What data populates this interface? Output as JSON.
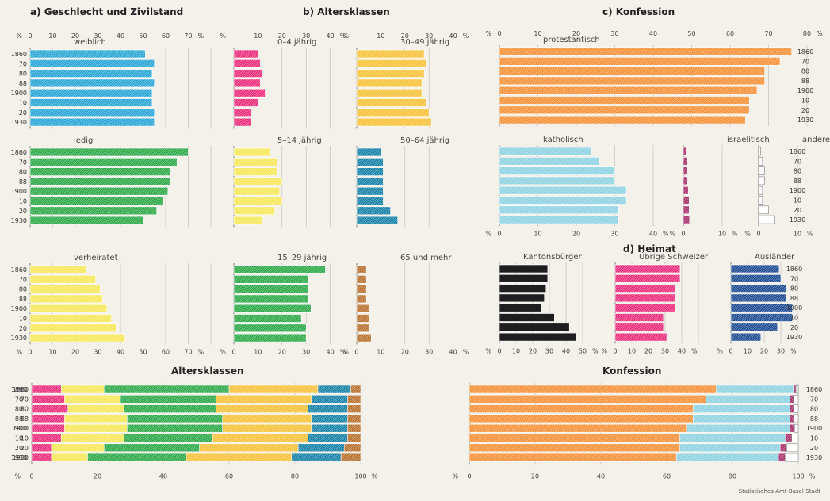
{
  "section_titles": {
    "a": "a) Geschlecht und Zivilstand",
    "b": "b) Altersklassen",
    "c": "c) Konfession",
    "d": "d) Heimat",
    "bottom_left": "Altersklassen",
    "bottom_right": "Konfession"
  },
  "footer": "Statistisches Amt Basel-Stadt",
  "colors": {
    "blue": "#2aa7d6",
    "green": "#2faa4a",
    "yellow": "#f6e85a",
    "pink": "#ec2f7d",
    "amber": "#f8c33a",
    "teal": "#1883a8",
    "brown": "#b8712e",
    "orange": "#f7923a",
    "cyan": "#8fd3e2",
    "purple": "#a8326c",
    "white": "#ffffff",
    "black": "#1e1e1e",
    "navy": "#1f4e94"
  },
  "chart_data": [
    {
      "type": "bar",
      "orientation": "horizontal",
      "title": "weiblich",
      "categories": [
        "1860",
        "70",
        "80",
        "88",
        "1900",
        "10",
        "20",
        "1930"
      ],
      "values": [
        51,
        55,
        54,
        55,
        54,
        54,
        55,
        55
      ],
      "xlim": [
        0,
        80
      ],
      "ticks": [
        0,
        10,
        20,
        30,
        40,
        50,
        60,
        70
      ],
      "unit": "%",
      "color": "blue"
    },
    {
      "type": "bar",
      "orientation": "horizontal",
      "title": "ledig",
      "categories": [
        "1860",
        "70",
        "80",
        "88",
        "1900",
        "10",
        "20",
        "1930"
      ],
      "values": [
        70,
        65,
        62,
        62,
        61,
        59,
        56,
        50
      ],
      "xlim": [
        0,
        80
      ],
      "ticks": [],
      "color": "green"
    },
    {
      "type": "bar",
      "orientation": "horizontal",
      "title": "verheiratet",
      "categories": [
        "1860",
        "70",
        "80",
        "88",
        "1900",
        "10",
        "20",
        "1930"
      ],
      "values": [
        25,
        29,
        31,
        32,
        34,
        36,
        38,
        42
      ],
      "xlim": [
        0,
        80
      ],
      "ticks": [
        0,
        10,
        20,
        30,
        40,
        50,
        60,
        70
      ],
      "unit": "%",
      "color": "yellow"
    },
    {
      "type": "bar",
      "orientation": "horizontal",
      "title": "0–4 jährig",
      "categories": [
        "1860",
        "70",
        "80",
        "88",
        "1900",
        "10",
        "20",
        "1930"
      ],
      "values": [
        10,
        11,
        12,
        11,
        13,
        10,
        7,
        7
      ],
      "xlim": [
        0,
        45
      ],
      "ticks": [
        10,
        20,
        30,
        40
      ],
      "unit": "%",
      "color": "pink"
    },
    {
      "type": "bar",
      "orientation": "horizontal",
      "title": "5–14 jährig",
      "categories": [
        "1860",
        "70",
        "80",
        "88",
        "1900",
        "10",
        "20",
        "1930"
      ],
      "values": [
        15,
        18,
        18,
        20,
        19,
        20,
        17,
        12
      ],
      "xlim": [
        0,
        45
      ],
      "ticks": [],
      "color": "yellow"
    },
    {
      "type": "bar",
      "orientation": "horizontal",
      "title": "15–29 jährig",
      "categories": [
        "1860",
        "70",
        "80",
        "88",
        "1900",
        "10",
        "20",
        "1930"
      ],
      "values": [
        38,
        31,
        31,
        31,
        32,
        28,
        30,
        30
      ],
      "xlim": [
        0,
        45
      ],
      "ticks": [
        0,
        10,
        20,
        30,
        40
      ],
      "unit": "%",
      "color": "green"
    },
    {
      "type": "bar",
      "orientation": "horizontal",
      "title": "30–49 jährig",
      "categories": [
        "1860",
        "70",
        "80",
        "88",
        "1900",
        "10",
        "20",
        "1930"
      ],
      "values": [
        28,
        29,
        28,
        27,
        27,
        29,
        30,
        31
      ],
      "xlim": [
        0,
        45
      ],
      "ticks": [
        10,
        20,
        30,
        40
      ],
      "unit": "%",
      "color": "amber"
    },
    {
      "type": "bar",
      "orientation": "horizontal",
      "title": "50–64 jährig",
      "categories": [
        "1860",
        "70",
        "80",
        "88",
        "1900",
        "10",
        "20",
        "1930"
      ],
      "values": [
        10,
        11,
        11,
        11,
        11,
        11,
        14,
        17
      ],
      "xlim": [
        0,
        45
      ],
      "ticks": [],
      "color": "teal"
    },
    {
      "type": "bar",
      "orientation": "horizontal",
      "title": "65 und mehr",
      "categories": [
        "1860",
        "70",
        "80",
        "88",
        "1900",
        "10",
        "20",
        "1930"
      ],
      "values": [
        4,
        4,
        4,
        4,
        5,
        5,
        5,
        6
      ],
      "xlim": [
        0,
        45
      ],
      "ticks": [
        0,
        10,
        20,
        30,
        40
      ],
      "unit": "%",
      "color": "brown"
    },
    {
      "type": "bar",
      "orientation": "horizontal",
      "title": "protestantisch",
      "categories": [
        "1860",
        "70",
        "80",
        "88",
        "1900",
        "10",
        "20",
        "1930"
      ],
      "values": [
        76,
        73,
        69,
        69,
        67,
        65,
        65,
        64
      ],
      "xlim": [
        0,
        80
      ],
      "ticks": [
        0,
        10,
        20,
        30,
        40,
        50,
        60,
        70,
        80
      ],
      "unit": "%",
      "color": "orange"
    },
    {
      "type": "bar",
      "orientation": "horizontal",
      "title": "katholisch",
      "categories": [
        "1860",
        "70",
        "80",
        "88",
        "1900",
        "10",
        "20",
        "1930"
      ],
      "values": [
        24,
        26,
        30,
        30,
        33,
        33,
        31,
        31
      ],
      "xlim": [
        0,
        40
      ],
      "ticks": [
        0,
        10,
        20,
        30,
        40
      ],
      "unit": "%",
      "color": "cyan"
    },
    {
      "type": "bar",
      "orientation": "horizontal",
      "title": "israelitisch",
      "categories": [
        "1860",
        "70",
        "80",
        "88",
        "1900",
        "10",
        "20",
        "1930"
      ],
      "values": [
        0.7,
        0.9,
        1.1,
        1.1,
        1.3,
        1.5,
        1.5,
        1.6
      ],
      "xlim": [
        0,
        10
      ],
      "ticks": [
        0,
        10
      ],
      "unit": "%",
      "color": "purple"
    },
    {
      "type": "bar",
      "orientation": "horizontal",
      "title": "andere",
      "categories": [
        "1860",
        "70",
        "80",
        "88",
        "1900",
        "10",
        "20",
        "1930"
      ],
      "values": [
        0.5,
        1,
        1.5,
        1.5,
        1,
        1,
        2.5,
        4
      ],
      "xlim": [
        0,
        10
      ],
      "ticks": [
        0,
        10
      ],
      "unit": "%",
      "color": "white"
    },
    {
      "type": "bar",
      "orientation": "horizontal",
      "title": "Kantonsbürger",
      "categories": [
        "1860",
        "70",
        "80",
        "88",
        "1900",
        "10",
        "20",
        "1930"
      ],
      "values": [
        29,
        29,
        28,
        27,
        25,
        33,
        42,
        46
      ],
      "xlim": [
        0,
        50
      ],
      "ticks": [
        0,
        10,
        20,
        30,
        40,
        50
      ],
      "unit": "%",
      "color": "black"
    },
    {
      "type": "bar",
      "orientation": "horizontal",
      "title": "Übrige Schweizer",
      "categories": [
        "1860",
        "70",
        "80",
        "88",
        "1900",
        "10",
        "20",
        "1930"
      ],
      "values": [
        39,
        39,
        36,
        36,
        36,
        29,
        29,
        31
      ],
      "xlim": [
        0,
        50
      ],
      "ticks": [
        0,
        10,
        20,
        30,
        40
      ],
      "unit": "%",
      "color": "pink"
    },
    {
      "type": "bar",
      "orientation": "horizontal",
      "title": "Ausländer",
      "categories": [
        "1860",
        "70",
        "80",
        "88",
        "1900",
        "10",
        "20",
        "1930"
      ],
      "values": [
        29,
        30,
        33,
        33,
        37,
        37,
        28,
        18
      ],
      "xlim": [
        0,
        40
      ],
      "ticks": [
        0,
        10,
        20,
        30
      ],
      "unit": "%",
      "color": "navy"
    },
    {
      "type": "bar",
      "stacked": true,
      "orientation": "horizontal",
      "title": "Altersklassen",
      "categories": [
        "1860",
        "70",
        "80",
        "88",
        "1900",
        "10",
        "20",
        "1930"
      ],
      "xlim": [
        0,
        100
      ],
      "ticks": [
        0,
        20,
        40,
        60,
        80,
        100
      ],
      "unit": "%",
      "series": [
        {
          "name": "0–4 jährig",
          "color": "pink",
          "values": [
            9,
            10,
            11,
            10,
            10,
            9,
            6,
            6
          ]
        },
        {
          "name": "5–14 jährig",
          "color": "yellow",
          "values": [
            13,
            17,
            17,
            19,
            19,
            19,
            16,
            11
          ]
        },
        {
          "name": "15–29 jährig",
          "color": "green",
          "values": [
            38,
            29,
            28,
            29,
            29,
            27,
            29,
            30
          ]
        },
        {
          "name": "30–49 jährig",
          "color": "amber",
          "values": [
            27,
            29,
            28,
            27,
            27,
            29,
            30,
            32
          ]
        },
        {
          "name": "50–64 jährig",
          "color": "teal",
          "values": [
            10,
            11,
            12,
            11,
            11,
            12,
            14,
            15
          ]
        },
        {
          "name": "65 und mehr",
          "color": "brown",
          "values": [
            3,
            4,
            4,
            4,
            4,
            4,
            5,
            6
          ]
        }
      ]
    },
    {
      "type": "bar",
      "stacked": true,
      "orientation": "horizontal",
      "title": "Konfession",
      "categories": [
        "1860",
        "70",
        "80",
        "88",
        "1900",
        "10",
        "20",
        "1930"
      ],
      "xlim": [
        0,
        100
      ],
      "ticks": [
        0,
        20,
        40,
        60,
        80,
        100
      ],
      "unit": "%",
      "series": [
        {
          "name": "protestantisch",
          "color": "orange",
          "values": [
            75,
            72,
            68,
            68,
            66,
            64,
            64,
            63
          ]
        },
        {
          "name": "katholisch",
          "color": "cyan",
          "values": [
            23.5,
            25.5,
            29.5,
            29.5,
            31.5,
            32,
            30.5,
            31
          ]
        },
        {
          "name": "israelitisch",
          "color": "purple",
          "values": [
            0.8,
            1,
            1.1,
            1.1,
            1.4,
            2,
            2,
            2
          ]
        },
        {
          "name": "andere",
          "color": "white",
          "values": [
            0.7,
            1.5,
            1.4,
            1.4,
            1.1,
            2,
            3.5,
            4
          ]
        }
      ]
    }
  ]
}
